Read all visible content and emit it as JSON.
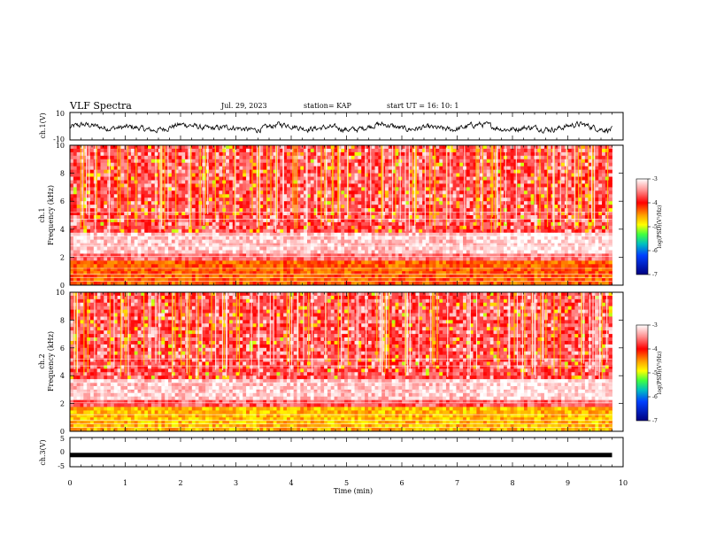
{
  "header": {
    "title": "VLF Spectra",
    "date": "Jul. 29, 2023",
    "station": "station= KAP",
    "start": "start UT =  16: 10: 1"
  },
  "chart_data": [
    {
      "type": "line",
      "id": "ch1-waveform",
      "ylabel": "ch.1(V)",
      "ylim": [
        -10,
        10
      ],
      "yticks": [
        "10",
        "-10"
      ],
      "xlim": [
        0,
        10
      ],
      "data_end_min": 9.8,
      "description_values": "noisy waveform oscillating roughly between -4 and +3 V"
    },
    {
      "type": "heatmap",
      "id": "ch1-spectrogram",
      "ylabel": "ch.1\nFrequency (kHz)",
      "ylim": [
        0,
        10
      ],
      "yticks": [
        "0",
        "2",
        "4",
        "6",
        "8",
        "10"
      ],
      "xlim": [
        0,
        10
      ],
      "data_end_min": 9.8,
      "colorbar": {
        "label": "log(PSD)(V²/Hz)",
        "ticks": [
          "-3",
          "-4",
          "-5",
          "-6",
          "-7"
        ],
        "range": [
          -7,
          -3
        ]
      },
      "bands_khz": [
        {
          "from": 0,
          "to": 1.7,
          "level": -4.6
        },
        {
          "from": 1.7,
          "to": 2.2,
          "level": -3.7
        },
        {
          "from": 2.2,
          "to": 3.7,
          "level": -3.3
        },
        {
          "from": 3.7,
          "to": 10,
          "level": -3.9
        }
      ]
    },
    {
      "type": "heatmap",
      "id": "ch2-spectrogram",
      "ylabel": "ch.2\nFrequency (kHz)",
      "ylim": [
        0,
        10
      ],
      "yticks": [
        "0",
        "2",
        "4",
        "6",
        "8",
        "10"
      ],
      "xlim": [
        0,
        10
      ],
      "data_end_min": 9.8,
      "colorbar": {
        "label": "log(PSD)(V²/Hz)",
        "ticks": [
          "-3",
          "-4",
          "-5",
          "-6",
          "-7"
        ],
        "range": [
          -7,
          -3
        ]
      },
      "bands_khz": [
        {
          "from": 0,
          "to": 1.8,
          "level": -5.0
        },
        {
          "from": 1.8,
          "to": 2.3,
          "level": -3.8
        },
        {
          "from": 2.3,
          "to": 3.7,
          "level": -3.3
        },
        {
          "from": 3.7,
          "to": 10,
          "level": -3.9
        }
      ]
    },
    {
      "type": "line",
      "id": "ch3-waveform",
      "ylabel": "ch.3(V)",
      "ylim": [
        -5,
        5
      ],
      "yticks": [
        "5",
        "0",
        "-5"
      ],
      "xlim": [
        0,
        10
      ],
      "data_end_min": 9.8,
      "level_v": -1
    }
  ],
  "xaxis": {
    "label": "Time (min)",
    "ticks": [
      "0",
      "1",
      "2",
      "3",
      "4",
      "5",
      "6",
      "7",
      "8",
      "9",
      "10"
    ]
  },
  "colors": {
    "red": "#ff2020",
    "white": "#ffffff",
    "yellow": "#ffff20",
    "green": "#20e020",
    "blue": "#0000c0"
  }
}
